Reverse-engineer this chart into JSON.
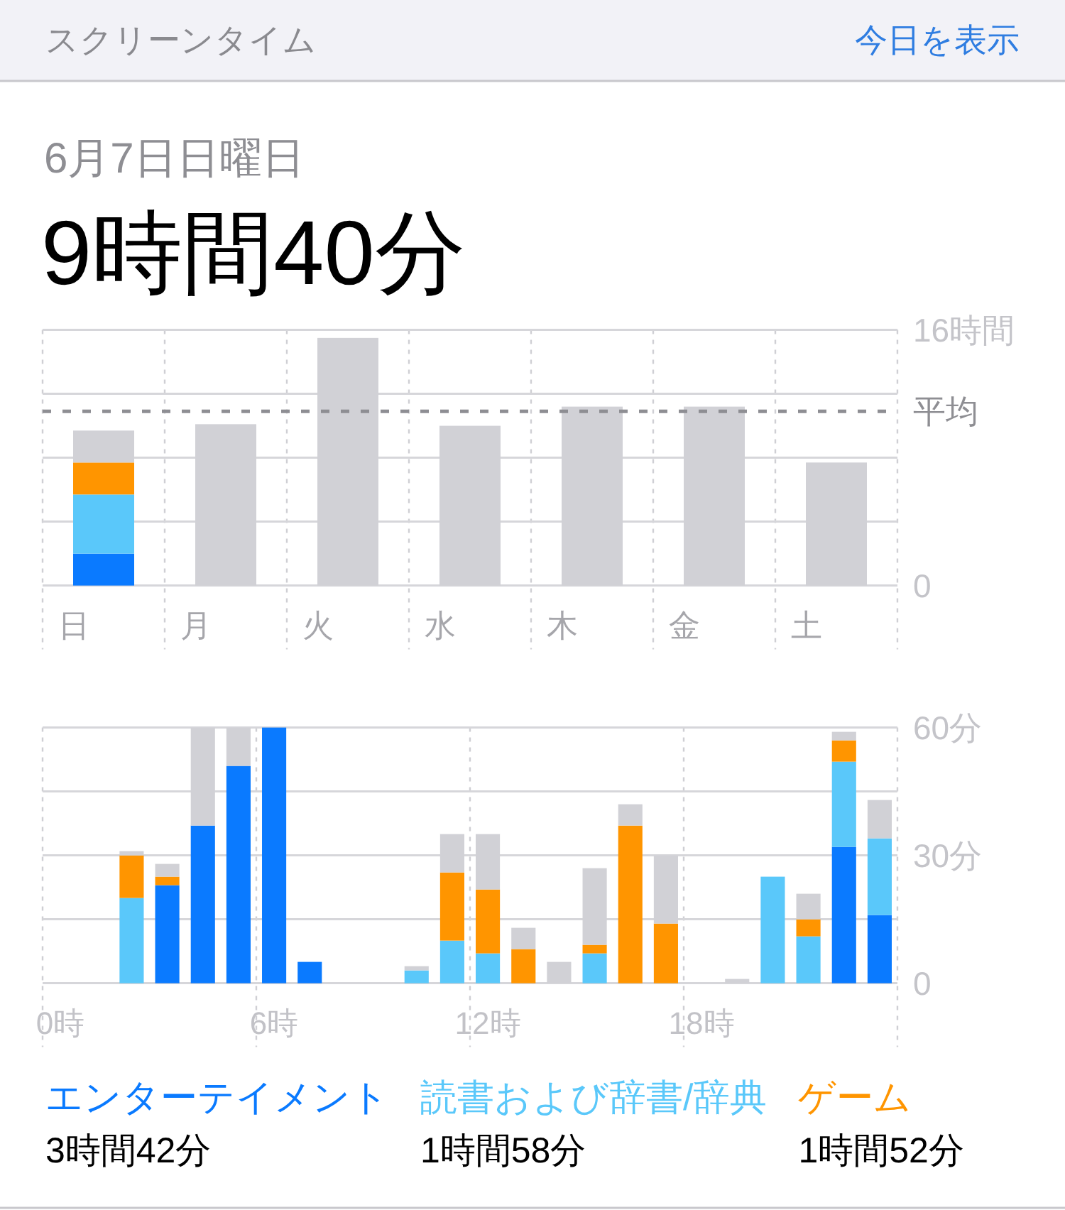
{
  "chart_data": [
    {
      "type": "bar",
      "stacked": true,
      "title": "スクリーンタイム",
      "subtitle": "6月7日日曜日",
      "annotations": [
        "今日を表示",
        "9時間40分"
      ],
      "categories": [
        "日",
        "月",
        "火",
        "水",
        "木",
        "金",
        "土"
      ],
      "series": [
        {
          "color": "#0a7aff",
          "values": [
            2.0,
            null,
            null,
            null,
            null,
            null,
            null
          ]
        },
        {
          "color": "#5ac8fa",
          "values": [
            3.7,
            null,
            null,
            null,
            null,
            null,
            null
          ]
        },
        {
          "color": "#ff9500",
          "values": [
            2.0,
            null,
            null,
            null,
            null,
            null,
            null
          ]
        },
        {
          "color": "#d1d1d6",
          "values": [
            2.0,
            10.1,
            15.5,
            10.0,
            11.2,
            11.2,
            7.7
          ]
        }
      ],
      "ylim": [
        0,
        16
      ],
      "yticks": [
        0,
        {
          "value": 4,
          "label": null
        },
        {
          "value": 8,
          "label": null
        },
        {
          "value": 12,
          "label": null
        },
        {
          "value": 16,
          "label": "16時間"
        }
      ],
      "grid": true,
      "ref_lines": [
        {
          "axis": "y",
          "value": 10.9,
          "label": "平均",
          "color": "#8e8e93",
          "line_style": "dashed"
        }
      ]
    },
    {
      "type": "bar",
      "stacked": true,
      "categories": [
        "0時",
        null,
        null,
        null,
        null,
        null,
        "6時",
        null,
        null,
        null,
        null,
        null,
        "12時",
        null,
        null,
        null,
        null,
        null,
        "18時",
        null,
        null,
        null,
        null,
        null
      ],
      "series": [
        {
          "name": "エンターテイメント",
          "color": "#0a7aff",
          "values": [
            null,
            null,
            null,
            23,
            37,
            51,
            60,
            5,
            null,
            null,
            null,
            null,
            null,
            null,
            null,
            null,
            null,
            null,
            null,
            null,
            null,
            null,
            32,
            16
          ]
        },
        {
          "name": "読書および辞書/辞典",
          "color": "#5ac8fa",
          "values": [
            null,
            null,
            20,
            null,
            null,
            null,
            null,
            null,
            null,
            null,
            3,
            10,
            7,
            null,
            null,
            7,
            null,
            null,
            null,
            null,
            25,
            11,
            20,
            18
          ]
        },
        {
          "name": "ゲーム",
          "color": "#ff9500",
          "values": [
            null,
            null,
            10,
            2,
            null,
            null,
            null,
            null,
            null,
            null,
            null,
            16,
            15,
            8,
            null,
            2,
            37,
            14,
            null,
            null,
            null,
            4,
            5,
            null
          ]
        },
        {
          "color": "#d1d1d6",
          "values": [
            null,
            null,
            1,
            3,
            23,
            9,
            null,
            null,
            null,
            null,
            1,
            9,
            13,
            5,
            5,
            18,
            5,
            16,
            null,
            1,
            null,
            6,
            2,
            9
          ]
        }
      ],
      "ylim": [
        0,
        60
      ],
      "yticks": [
        0,
        {
          "value": 15,
          "label": null
        },
        {
          "value": 30,
          "label": "30分"
        },
        {
          "value": 45,
          "label": null
        },
        {
          "value": 60,
          "label": "60分"
        }
      ],
      "grid": true,
      "annotations": [
        "3時間42分",
        "1時間58分",
        "1時間52分"
      ]
    }
  ]
}
